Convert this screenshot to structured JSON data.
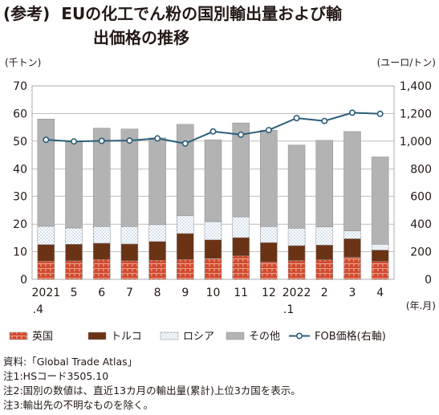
{
  "title": {
    "tag": "(参考)",
    "line1": "EUの化工でん粉の国別輸出量および輸",
    "line2": "出価格の推移"
  },
  "chart_data": {
    "type": "bar",
    "stacked": true,
    "y_left_unit": "(千トン)",
    "y_right_unit": "(ユーロ/トン)",
    "x_unit": "(年.月)",
    "categories": [
      "2021\n.4",
      "5",
      "6",
      "7",
      "8",
      "9",
      "10",
      "11",
      "12",
      "2022\n.1",
      "2",
      "3",
      "4"
    ],
    "ylim_left": [
      0,
      70
    ],
    "yticks_left": [
      0,
      10,
      20,
      30,
      40,
      50,
      60,
      70
    ],
    "ylim_right": [
      0,
      1400
    ],
    "yticks_right": [
      "0",
      "200",
      "400",
      "600",
      "800",
      "1,000",
      "1,200",
      "1,400"
    ],
    "series": [
      {
        "name": "英国",
        "color": "#d9573f",
        "pattern": "brick",
        "values": [
          6.6,
          6.7,
          7.2,
          6.7,
          6.9,
          7.2,
          7.5,
          8.5,
          6.3,
          6.8,
          7.1,
          8.0,
          6.5
        ]
      },
      {
        "name": "トルコ",
        "color": "#6b3315",
        "pattern": "solid",
        "values": [
          6.0,
          6.0,
          5.9,
          6.1,
          6.8,
          9.4,
          6.8,
          6.6,
          7.0,
          5.4,
          5.3,
          6.7,
          4.1
        ]
      },
      {
        "name": "ロシア",
        "color": "#7fa7c9",
        "pattern": "dots",
        "values": [
          6.6,
          5.9,
          6.0,
          6.3,
          6.1,
          6.4,
          6.6,
          7.5,
          5.8,
          6.3,
          6.6,
          2.8,
          2.1
        ]
      },
      {
        "name": "その他",
        "color": "#b3b3b3",
        "pattern": "solid",
        "values": [
          38.8,
          31.2,
          35.6,
          35.3,
          31.4,
          33.1,
          29.6,
          34.0,
          34.9,
          30.1,
          31.3,
          36.0,
          31.6
        ]
      }
    ],
    "line": {
      "name": "FOB価格(右軸)",
      "color": "#2b5f7a",
      "values": [
        1010,
        998,
        1002,
        1004,
        1020,
        983,
        1070,
        1047,
        1080,
        1167,
        1146,
        1206,
        1198
      ]
    }
  },
  "notes": [
    "資料:「Global Trade Atlas」",
    "注1:HSコード3505.10",
    "注2:国別の数値は、直近13カ月の輸出量(累計)上位3カ国を表示。",
    "注3:輸出先の不明なものを除く。"
  ]
}
